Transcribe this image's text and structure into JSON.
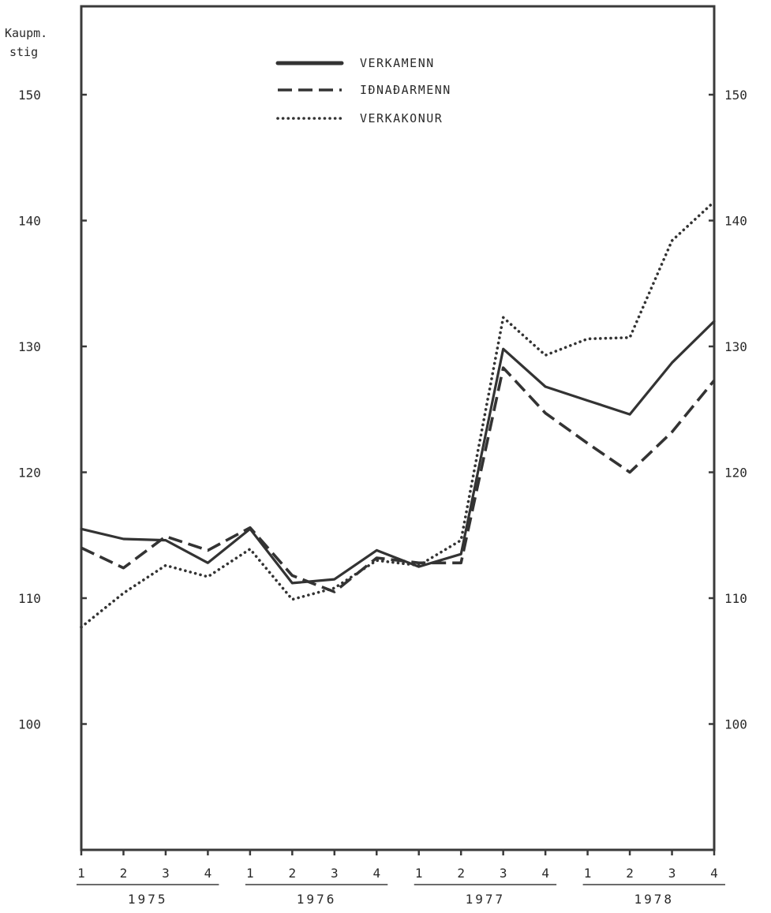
{
  "chart_data": {
    "type": "line",
    "ylabel_lines": [
      "Kaupm.",
      "stig"
    ],
    "ylim": [
      90,
      155
    ],
    "yticks": [
      100,
      110,
      120,
      130,
      140,
      150
    ],
    "x_quarters": [
      "1",
      "2",
      "3",
      "4",
      "1",
      "2",
      "3",
      "4",
      "1",
      "2",
      "3",
      "4",
      "1",
      "2",
      "3",
      "4"
    ],
    "x_years": [
      "1975",
      "1976",
      "1977",
      "1978"
    ],
    "grid": false,
    "legend_position": "top-center",
    "series": [
      {
        "name": "VERKAMENN",
        "style": "solid",
        "values": [
          115.5,
          114.7,
          114.6,
          112.8,
          115.5,
          111.2,
          111.5,
          113.8,
          112.5,
          113.5,
          129.8,
          126.8,
          125.7,
          124.6,
          128.7,
          132.0
        ]
      },
      {
        "name": "IÐNAÐARMENN",
        "style": "dashed",
        "values": [
          114.0,
          112.4,
          114.9,
          113.8,
          115.6,
          111.8,
          110.5,
          113.2,
          112.8,
          112.8,
          128.3,
          124.7,
          122.3,
          120.0,
          123.2,
          127.3
        ]
      },
      {
        "name": "VERKAKONUR",
        "style": "dotted",
        "values": [
          107.7,
          110.4,
          112.6,
          111.7,
          113.9,
          109.9,
          110.8,
          113.0,
          112.6,
          114.6,
          132.3,
          129.3,
          130.6,
          130.7,
          138.4,
          141.5
        ]
      }
    ]
  }
}
